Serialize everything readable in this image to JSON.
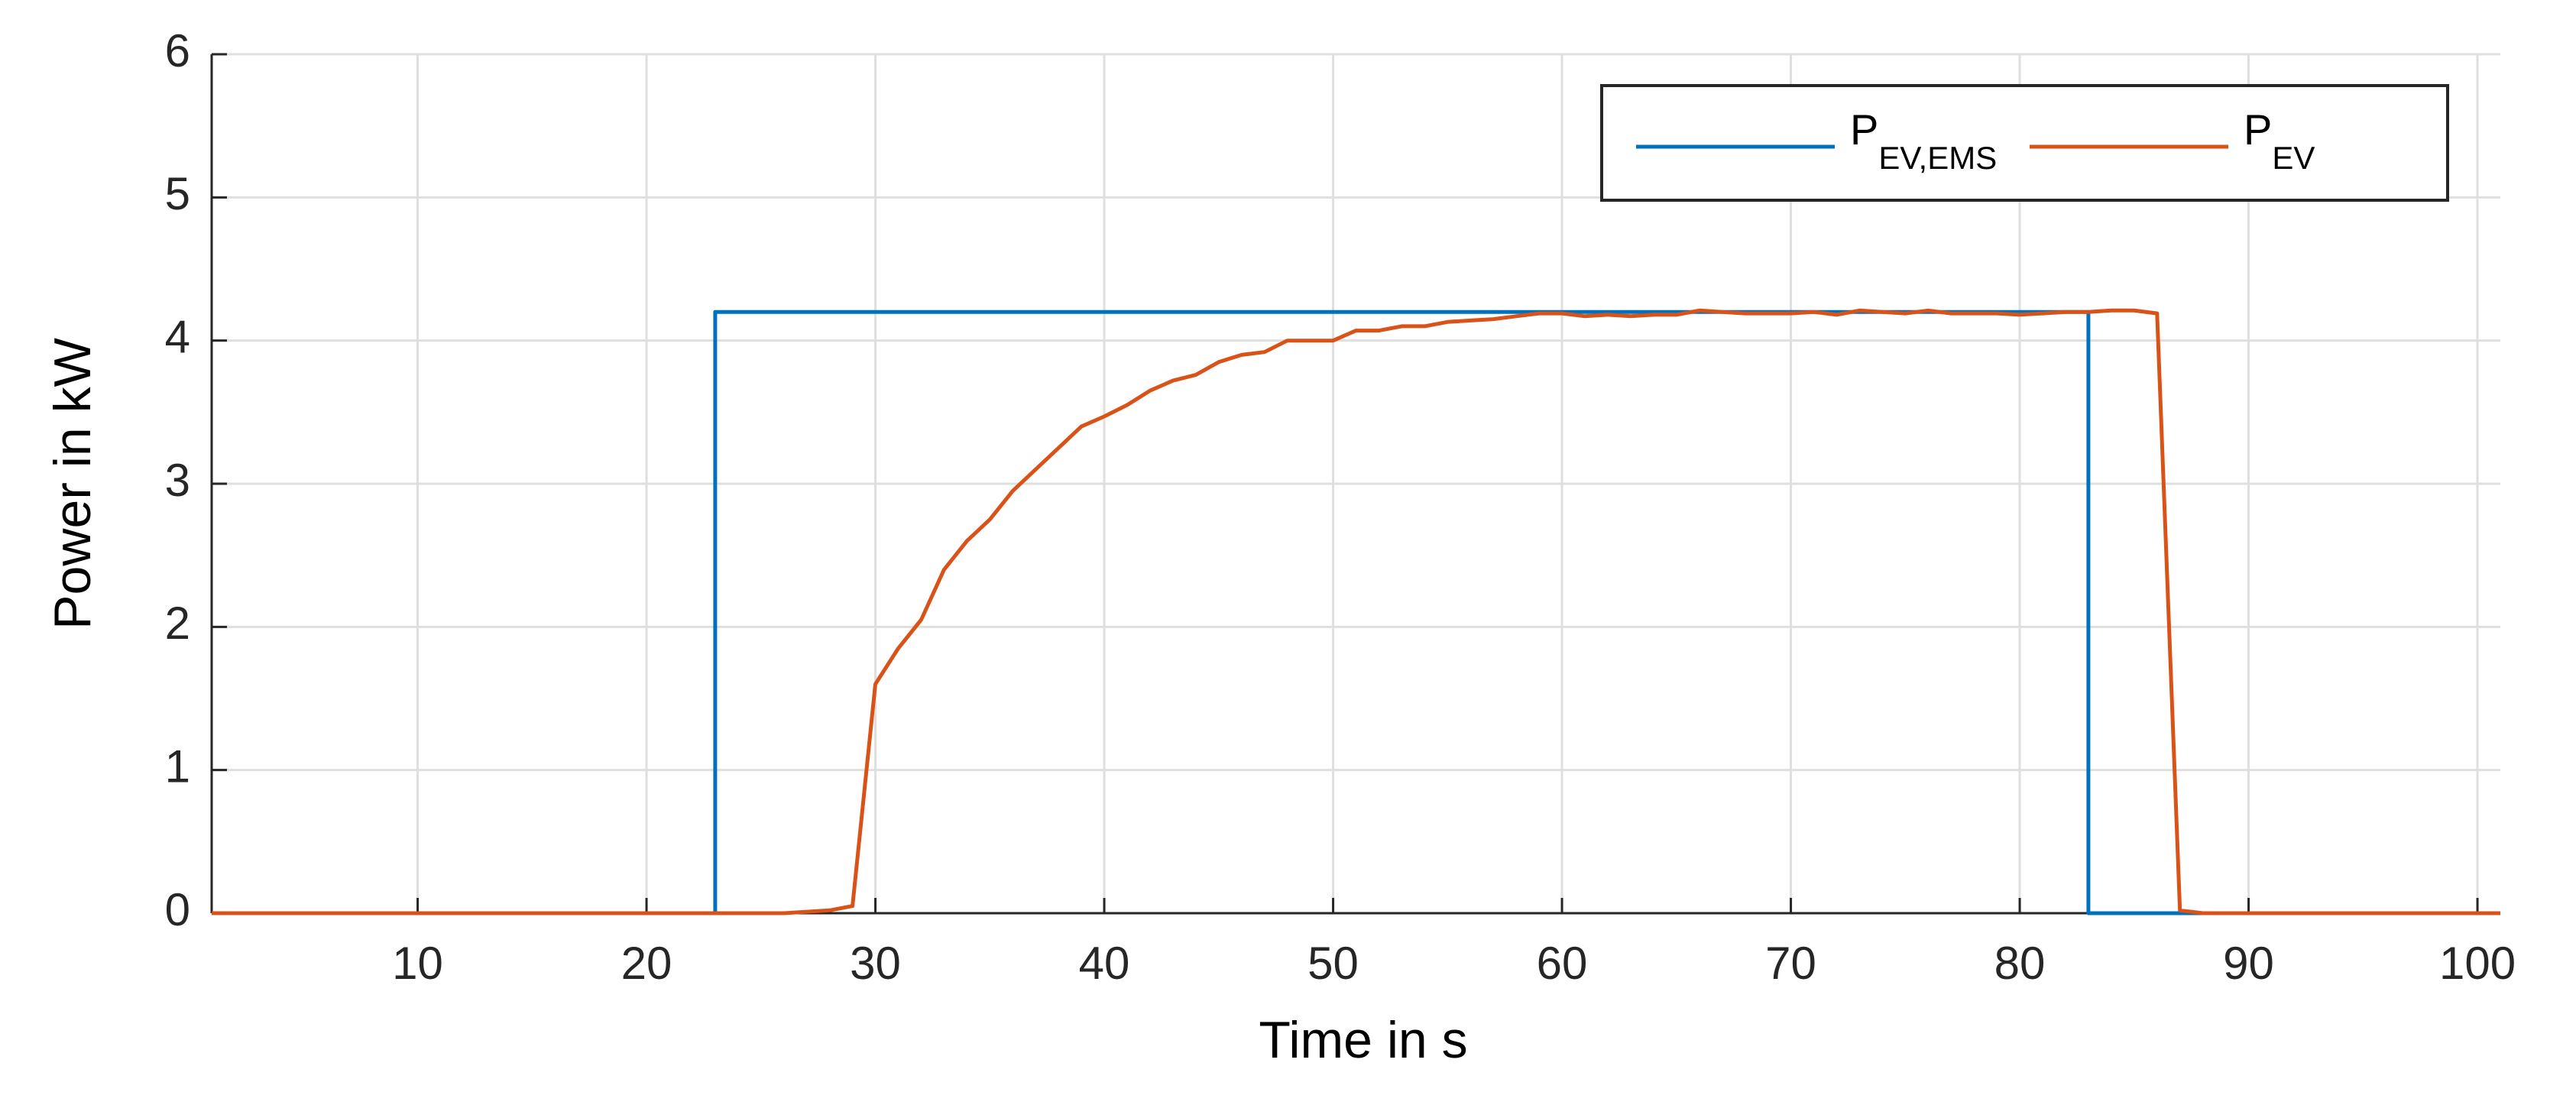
{
  "chart_data": {
    "type": "line",
    "xlabel": "Time in s",
    "ylabel": "Power in kW",
    "xlim": [
      1,
      101
    ],
    "xticks": [
      10,
      20,
      30,
      40,
      50,
      60,
      70,
      80,
      90,
      100
    ],
    "ylim": [
      0,
      6
    ],
    "yticks": [
      0,
      1,
      2,
      3,
      4,
      5,
      6
    ],
    "grid": true,
    "legend": "upper right",
    "series": [
      {
        "name": "P",
        "name_sub": "EV,EMS",
        "color": "#0072bd",
        "x": [
          1,
          23,
          23,
          83,
          83,
          101
        ],
        "values": [
          0,
          0,
          4.2,
          4.2,
          0,
          0
        ]
      },
      {
        "name": "P",
        "name_sub": "EV",
        "color": "#d95319",
        "x": [
          1,
          26,
          28,
          29,
          30,
          31,
          32,
          33,
          34,
          35,
          36,
          37,
          38,
          39,
          40,
          41,
          42,
          43,
          44,
          45,
          46,
          47,
          48,
          49,
          50,
          51,
          52,
          53,
          54,
          55,
          56,
          57,
          58,
          59,
          60,
          61,
          62,
          63,
          64,
          65,
          66,
          67,
          68,
          69,
          70,
          71,
          72,
          73,
          74,
          75,
          76,
          77,
          78,
          79,
          80,
          81,
          82,
          83,
          84,
          85,
          86,
          87,
          88,
          101
        ],
        "values": [
          0,
          0,
          0.02,
          0.05,
          1.6,
          1.85,
          2.05,
          2.4,
          2.6,
          2.75,
          2.95,
          3.1,
          3.25,
          3.4,
          3.47,
          3.55,
          3.65,
          3.72,
          3.76,
          3.85,
          3.9,
          3.92,
          4.0,
          4.0,
          4.0,
          4.07,
          4.07,
          4.1,
          4.1,
          4.13,
          4.14,
          4.15,
          4.17,
          4.19,
          4.19,
          4.17,
          4.18,
          4.17,
          4.18,
          4.18,
          4.21,
          4.2,
          4.19,
          4.19,
          4.19,
          4.2,
          4.18,
          4.21,
          4.2,
          4.19,
          4.21,
          4.19,
          4.19,
          4.19,
          4.18,
          4.19,
          4.2,
          4.2,
          4.21,
          4.21,
          4.19,
          0.02,
          0,
          0
        ]
      }
    ]
  }
}
